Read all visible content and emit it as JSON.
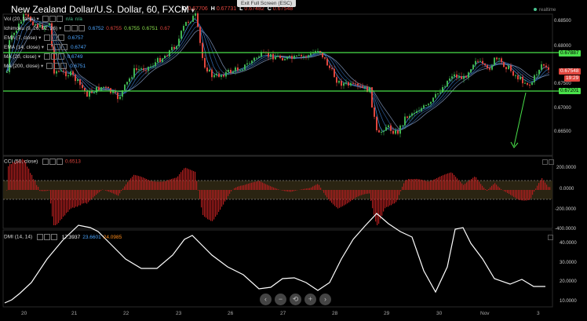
{
  "header": {
    "symbol": "New Zealand Dollar/U.S. Dollar, 60, FXCM",
    "ohlc": [
      {
        "label": "O",
        "value": "0.67706"
      },
      {
        "label": "H",
        "value": "0.67731"
      },
      {
        "label": "L",
        "value": "0.67482"
      },
      {
        "label": "C",
        "value": "0.67548"
      }
    ],
    "exit_fullscreen": "Exit Full Screen (ESC)",
    "realtime": "realtime"
  },
  "indicators": [
    {
      "label": "Vol (20, false)",
      "values": [
        {
          "text": "n/a",
          "color": "#49c38f"
        },
        {
          "text": "n/a",
          "color": "#49c38f"
        }
      ]
    },
    {
      "label": "Ichimoku (9, 26, 52, 26)",
      "values": [
        {
          "text": "0.6752",
          "color": "#4da6ff"
        },
        {
          "text": "0.6755",
          "color": "#e0453d"
        },
        {
          "text": "0.6755",
          "color": "#8be04d"
        },
        {
          "text": "0.6751",
          "color": "#8be04d"
        },
        {
          "text": "0.67",
          "color": "#e0453d"
        }
      ]
    },
    {
      "label": "EMA (7, close)",
      "values": [
        {
          "text": "0.6757",
          "color": "#4da6ff"
        }
      ]
    },
    {
      "label": "EMA (14, close)",
      "values": [
        {
          "text": "0.6747",
          "color": "#4da6ff"
        }
      ]
    },
    {
      "label": "MA (20, close)",
      "values": [
        {
          "text": "0.6749",
          "color": "#4da6ff"
        }
      ]
    },
    {
      "label": "MA (200, close)",
      "values": [
        {
          "text": "0.6751",
          "color": "#4da6ff"
        }
      ]
    }
  ],
  "price_axis": {
    "ticks": [
      "0.68500",
      "0.68000",
      "0.67500",
      "0.67000",
      "0.66500"
    ],
    "tag_resistance": "0.67887",
    "tag_current": "0.67548",
    "tag_countdown": "19:29",
    "tag_support": "0.67201"
  },
  "cci": {
    "label": "CCI (50, close)",
    "value": "0.6513",
    "ticks": [
      "200.0000",
      "0.0000",
      "-200.0000",
      "-400.0000"
    ]
  },
  "dmi": {
    "label": "DMI (14, 14)",
    "values": [
      {
        "text": "17.3937",
        "color": "#ffffff"
      },
      {
        "text": "23.6601",
        "color": "#4da6ff"
      },
      {
        "text": "24.0985",
        "color": "#ff8c1a"
      }
    ],
    "ticks": [
      "40.0000",
      "30.0000",
      "20.0000",
      "10.0000"
    ]
  },
  "x_axis": [
    "20",
    "21",
    "22",
    "23",
    "26",
    "27",
    "28",
    "29",
    "30",
    "Nov",
    "3"
  ],
  "nav_buttons": [
    "‹",
    "−",
    "⟲",
    "+",
    "›"
  ],
  "colors": {
    "up": "#3fb34f",
    "down": "#e0453d",
    "line": "#49e04a",
    "accent": "#4da6ff"
  }
}
